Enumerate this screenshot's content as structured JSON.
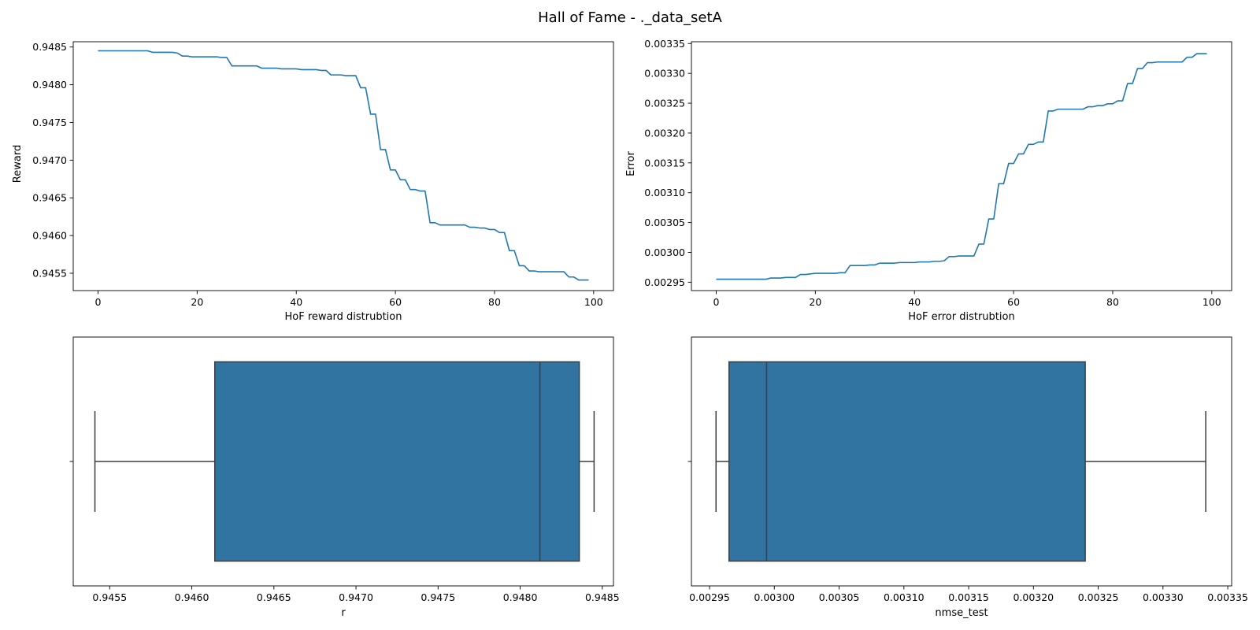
{
  "figure": {
    "title": "Hall of Fame - ._data_setA"
  },
  "chart_data": [
    {
      "id": "reward_line",
      "type": "line",
      "xlabel": "HoF reward distrubtion",
      "ylabel": "Reward",
      "xlim": [
        -5,
        104
      ],
      "ylim": [
        0.94527,
        0.94857
      ],
      "xticks": [
        0,
        20,
        40,
        60,
        80,
        100
      ],
      "xtick_labels": [
        "0",
        "20",
        "40",
        "60",
        "80",
        "100"
      ],
      "yticks": [
        0.9455,
        0.946,
        0.9465,
        0.947,
        0.9475,
        0.948,
        0.9485
      ],
      "ytick_labels": [
        "0.9455",
        "0.9460",
        "0.9465",
        "0.9470",
        "0.9475",
        "0.9480",
        "0.9485"
      ],
      "color": "#1f77b4",
      "x": [
        0,
        1,
        2,
        3,
        4,
        5,
        6,
        7,
        8,
        9,
        10,
        11,
        12,
        13,
        14,
        15,
        16,
        17,
        18,
        19,
        20,
        21,
        22,
        23,
        24,
        25,
        26,
        27,
        28,
        29,
        30,
        31,
        32,
        33,
        34,
        35,
        36,
        37,
        38,
        39,
        40,
        41,
        42,
        43,
        44,
        45,
        46,
        47,
        48,
        49,
        50,
        51,
        52,
        53,
        54,
        55,
        56,
        57,
        58,
        59,
        60,
        61,
        62,
        63,
        64,
        65,
        66,
        67,
        68,
        69,
        70,
        71,
        72,
        73,
        74,
        75,
        76,
        77,
        78,
        79,
        80,
        81,
        82,
        83,
        84,
        85,
        86,
        87,
        88,
        89,
        90,
        91,
        92,
        93,
        94,
        95,
        96,
        97,
        98,
        99
      ],
      "y": [
        0.94845,
        0.94845,
        0.94845,
        0.94845,
        0.94845,
        0.94845,
        0.94845,
        0.94845,
        0.94845,
        0.94845,
        0.94845,
        0.94843,
        0.94843,
        0.94843,
        0.94843,
        0.94843,
        0.94842,
        0.94838,
        0.94838,
        0.94837,
        0.94837,
        0.94837,
        0.94837,
        0.94837,
        0.94837,
        0.94836,
        0.94836,
        0.94825,
        0.94825,
        0.94825,
        0.94825,
        0.94825,
        0.94825,
        0.94822,
        0.94822,
        0.94822,
        0.94822,
        0.94821,
        0.94821,
        0.94821,
        0.94821,
        0.9482,
        0.9482,
        0.9482,
        0.9482,
        0.94819,
        0.94819,
        0.94813,
        0.94813,
        0.94813,
        0.94812,
        0.94812,
        0.94812,
        0.94796,
        0.94796,
        0.94761,
        0.94761,
        0.94714,
        0.94714,
        0.94687,
        0.94687,
        0.94674,
        0.94674,
        0.94661,
        0.94661,
        0.94659,
        0.94659,
        0.94617,
        0.94617,
        0.94614,
        0.94614,
        0.94614,
        0.94614,
        0.94614,
        0.94614,
        0.94611,
        0.94611,
        0.9461,
        0.9461,
        0.94608,
        0.94608,
        0.94604,
        0.94604,
        0.9458,
        0.9458,
        0.9456,
        0.9456,
        0.94553,
        0.94553,
        0.94552,
        0.94552,
        0.94552,
        0.94552,
        0.94552,
        0.94552,
        0.94545,
        0.94545,
        0.94541,
        0.94541,
        0.94541
      ]
    },
    {
      "id": "error_line",
      "type": "line",
      "xlabel": "HoF error distrubtion",
      "ylabel": "Error",
      "xlim": [
        -5,
        104
      ],
      "ylim": [
        0.002936,
        0.003353
      ],
      "xticks": [
        0,
        20,
        40,
        60,
        80,
        100
      ],
      "xtick_labels": [
        "0",
        "20",
        "40",
        "60",
        "80",
        "100"
      ],
      "yticks": [
        0.00295,
        0.003,
        0.00305,
        0.0031,
        0.00315,
        0.0032,
        0.00325,
        0.0033,
        0.00335
      ],
      "ytick_labels": [
        "0.00295",
        "0.00300",
        "0.00305",
        "0.00310",
        "0.00315",
        "0.00320",
        "0.00325",
        "0.00330",
        "0.00335"
      ],
      "color": "#1f77b4",
      "x": [
        0,
        1,
        2,
        3,
        4,
        5,
        6,
        7,
        8,
        9,
        10,
        11,
        12,
        13,
        14,
        15,
        16,
        17,
        18,
        19,
        20,
        21,
        22,
        23,
        24,
        25,
        26,
        27,
        28,
        29,
        30,
        31,
        32,
        33,
        34,
        35,
        36,
        37,
        38,
        39,
        40,
        41,
        42,
        43,
        44,
        45,
        46,
        47,
        48,
        49,
        50,
        51,
        52,
        53,
        54,
        55,
        56,
        57,
        58,
        59,
        60,
        61,
        62,
        63,
        64,
        65,
        66,
        67,
        68,
        69,
        70,
        71,
        72,
        73,
        74,
        75,
        76,
        77,
        78,
        79,
        80,
        81,
        82,
        83,
        84,
        85,
        86,
        87,
        88,
        89,
        90,
        91,
        92,
        93,
        94,
        95,
        96,
        97,
        98,
        99
      ],
      "y": [
        0.002955,
        0.002955,
        0.002955,
        0.002955,
        0.002955,
        0.002955,
        0.002955,
        0.002955,
        0.002955,
        0.002955,
        0.002955,
        0.002957,
        0.002957,
        0.002957,
        0.002958,
        0.002958,
        0.002958,
        0.002963,
        0.002963,
        0.002964,
        0.002965,
        0.002965,
        0.002965,
        0.002965,
        0.002965,
        0.002966,
        0.002966,
        0.002978,
        0.002978,
        0.002978,
        0.002978,
        0.002979,
        0.002979,
        0.002982,
        0.002982,
        0.002982,
        0.002982,
        0.002983,
        0.002983,
        0.002983,
        0.002983,
        0.002984,
        0.002984,
        0.002984,
        0.002985,
        0.002985,
        0.002986,
        0.002993,
        0.002993,
        0.002994,
        0.002994,
        0.002994,
        0.002994,
        0.003014,
        0.003014,
        0.003056,
        0.003056,
        0.003115,
        0.003115,
        0.003149,
        0.003149,
        0.003165,
        0.003165,
        0.003181,
        0.003181,
        0.003185,
        0.003185,
        0.003237,
        0.003237,
        0.00324,
        0.00324,
        0.00324,
        0.00324,
        0.00324,
        0.00324,
        0.003244,
        0.003244,
        0.003246,
        0.003246,
        0.003249,
        0.003249,
        0.003254,
        0.003254,
        0.003283,
        0.003283,
        0.003308,
        0.003308,
        0.003318,
        0.003318,
        0.003319,
        0.003319,
        0.003319,
        0.003319,
        0.003319,
        0.003319,
        0.003327,
        0.003327,
        0.003333,
        0.003333,
        0.003333
      ]
    },
    {
      "id": "reward_box",
      "type": "box",
      "xlabel": "r",
      "xlim": [
        0.945278,
        0.948568
      ],
      "xticks": [
        0.9455,
        0.946,
        0.9465,
        0.947,
        0.9475,
        0.948,
        0.9485
      ],
      "xtick_labels": [
        "0.9455",
        "0.9460",
        "0.9465",
        "0.9470",
        "0.9475",
        "0.9480",
        "0.9485"
      ],
      "whisker_low": 0.94541,
      "q1": 0.94614,
      "median": 0.94812,
      "q3": 0.94836,
      "whisker_high": 0.94845,
      "color": "#3274a1"
    },
    {
      "id": "error_box",
      "type": "box",
      "xlabel": "nmse_test",
      "xlim": [
        0.002936,
        0.003353
      ],
      "xticks": [
        0.00295,
        0.003,
        0.00305,
        0.0031,
        0.00315,
        0.0032,
        0.00325,
        0.0033,
        0.00335
      ],
      "xtick_labels": [
        "0.00295",
        "0.00300",
        "0.00305",
        "0.00310",
        "0.00315",
        "0.00320",
        "0.00325",
        "0.00330",
        "0.00335"
      ],
      "whisker_low": 0.002955,
      "q1": 0.002965,
      "median": 0.002994,
      "q3": 0.00324,
      "whisker_high": 0.003333,
      "color": "#3274a1"
    }
  ]
}
